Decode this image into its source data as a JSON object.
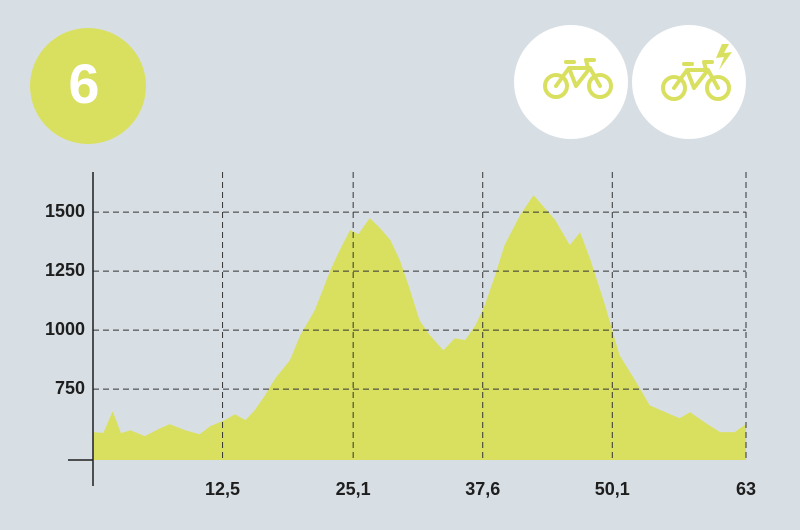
{
  "badge": "6",
  "chart_data": {
    "type": "area",
    "color": "#d9e060",
    "x": [
      0,
      1.0,
      1.9,
      2.7,
      3.6,
      5.0,
      6.5,
      7.4,
      8.9,
      10.3,
      11.3,
      12.7,
      13.7,
      14.7,
      15.6,
      16.6,
      17.6,
      19.0,
      20.0,
      21.4,
      22.9,
      23.8,
      24.8,
      25.6,
      26.7,
      27.7,
      28.7,
      29.6,
      30.6,
      31.5,
      32.5,
      33.8,
      34.9,
      35.9,
      36.9,
      37.8,
      38.8,
      39.7,
      41.2,
      42.5,
      43.6,
      44.6,
      46.0,
      47.0,
      48.0,
      49.4,
      50.8,
      52.3,
      53.7,
      55.2,
      56.6,
      57.6,
      59.0,
      60.5,
      61.9,
      63
    ],
    "values": [
      568,
      565,
      657,
      564,
      576,
      551,
      585,
      602,
      576,
      559,
      593,
      619,
      644,
      619,
      661,
      725,
      797,
      873,
      979,
      1085,
      1254,
      1339,
      1424,
      1407,
      1475,
      1432,
      1381,
      1297,
      1169,
      1042,
      979,
      915,
      966,
      958,
      1021,
      1106,
      1233,
      1360,
      1487,
      1572,
      1517,
      1466,
      1360,
      1415,
      1297,
      1106,
      894,
      788,
      682,
      653,
      627,
      653,
      610,
      568,
      568,
      602
    ],
    "xlim": [
      0,
      63
    ],
    "ylim": [
      450,
      1670
    ],
    "xticks": [
      {
        "value": 12.5,
        "label": "12,5"
      },
      {
        "value": 25.1,
        "label": "25,1"
      },
      {
        "value": 37.6,
        "label": "37,6"
      },
      {
        "value": 50.1,
        "label": "50,1"
      },
      63
    ],
    "yticks": [
      750,
      1000,
      1250,
      1500
    ],
    "grid": true
  }
}
